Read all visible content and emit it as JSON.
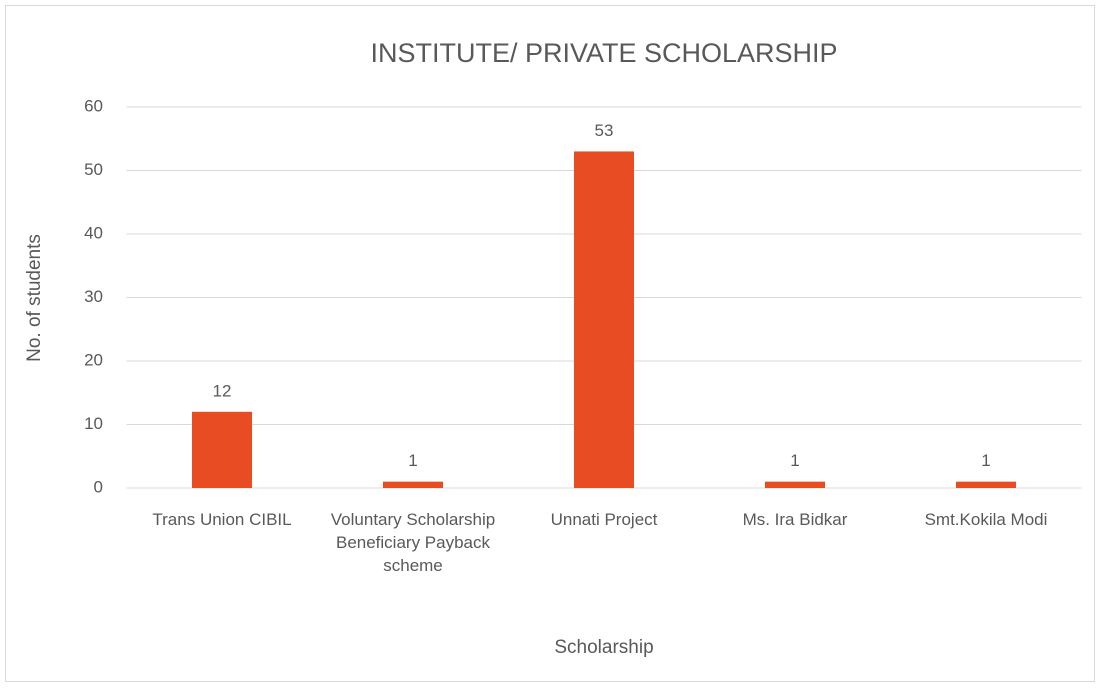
{
  "chart_data": {
    "type": "bar",
    "title": "INSTITUTE/ PRIVATE SCHOLARSHIP",
    "x_label": "Scholarship",
    "y_label": "No. of students",
    "categories": [
      "Trans Union CIBIL",
      "Voluntary Scholarship Beneficiary Payback scheme",
      "Unnati Project",
      "Ms. Ira Bidkar",
      "Smt.Kokila Modi"
    ],
    "values": [
      12,
      1,
      53,
      1,
      1
    ],
    "color": "#e84c22",
    "ylim": [
      0,
      60
    ],
    "yticks": [
      0,
      10,
      20,
      30,
      40,
      50,
      60
    ],
    "grid": true,
    "data_labels": true
  }
}
